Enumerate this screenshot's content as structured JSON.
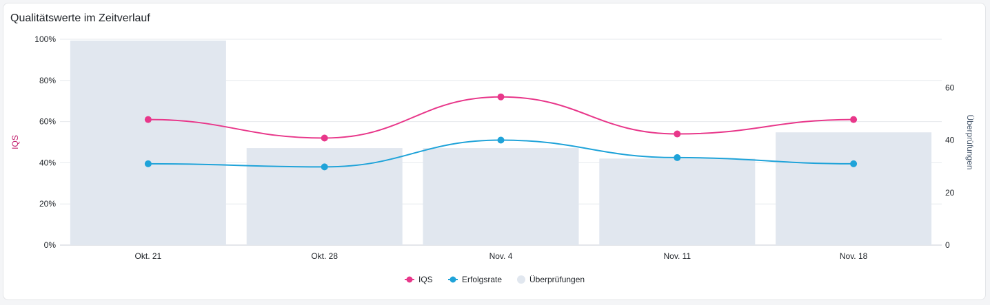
{
  "card": {
    "title": "Qualitätswerte im Zeitverlauf"
  },
  "colors": {
    "iqs": "#e8378a",
    "success": "#1fa3d9",
    "reviews": "#e1e7ef",
    "grid": "#e6e9ed",
    "axis_text": "#1f2328",
    "left_axis_title": "#c2206e",
    "right_axis_title": "#4a5a6e"
  },
  "chart_data": {
    "type": "bar",
    "title": "Qualitätswerte im Zeitverlauf",
    "categories": [
      "Okt. 21",
      "Okt. 28",
      "Nov. 4",
      "Nov. 11",
      "Nov. 18"
    ],
    "y_left": {
      "label": "IQS",
      "min": 0,
      "max": 100,
      "ticks": [
        0,
        20,
        40,
        60,
        80,
        100
      ],
      "tick_labels": [
        "0%",
        "20%",
        "40%",
        "60%",
        "80%",
        "100%"
      ]
    },
    "y_right": {
      "label": "Überprüfungen",
      "min": 0,
      "max": 78.5,
      "ticks": [
        0,
        20,
        40,
        60
      ],
      "tick_labels": [
        "0",
        "20",
        "40",
        "60"
      ]
    },
    "series": [
      {
        "name": "IQS",
        "type": "line",
        "axis": "left",
        "values": [
          61,
          52,
          72,
          54,
          61
        ]
      },
      {
        "name": "Erfolgsrate",
        "type": "line",
        "axis": "left",
        "values": [
          39.5,
          38,
          51,
          42.5,
          39.5
        ]
      },
      {
        "name": "Überprüfungen",
        "type": "bar",
        "axis": "right",
        "values": [
          78,
          37,
          37,
          33,
          43
        ]
      }
    ],
    "legend": {
      "position": "bottom-center",
      "items": [
        "IQS",
        "Erfolgsrate",
        "Überprüfungen"
      ]
    },
    "grid": true
  }
}
